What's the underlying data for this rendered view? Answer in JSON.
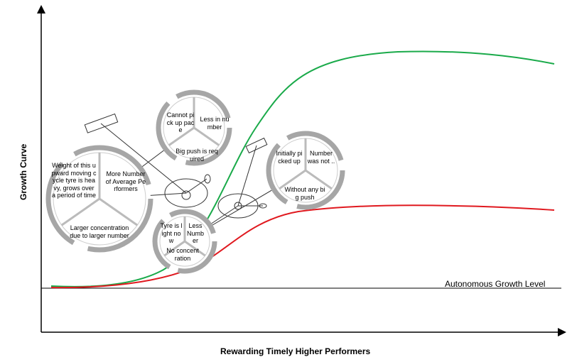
{
  "axes": {
    "y_label": "Growth Curve",
    "x_label": "Rewarding Timely Higher Performers",
    "baseline_label": "Autonomous Growth Level"
  },
  "wheels": [
    {
      "segments": [
        "Weight of this upward moving cycle tyre is heavy, grows over a period of time",
        "More Number of Average Performers",
        "Larger concentration due to larger number"
      ]
    },
    {
      "segments": [
        "Cannot pick up pace",
        "Less in number",
        "Big push is required"
      ]
    },
    {
      "segments": [
        "Tyre is light now",
        "Less Number",
        "No concentration"
      ]
    },
    {
      "segments": [
        "Initially picked up",
        "Number was not ..",
        "Without any big push"
      ]
    }
  ]
}
